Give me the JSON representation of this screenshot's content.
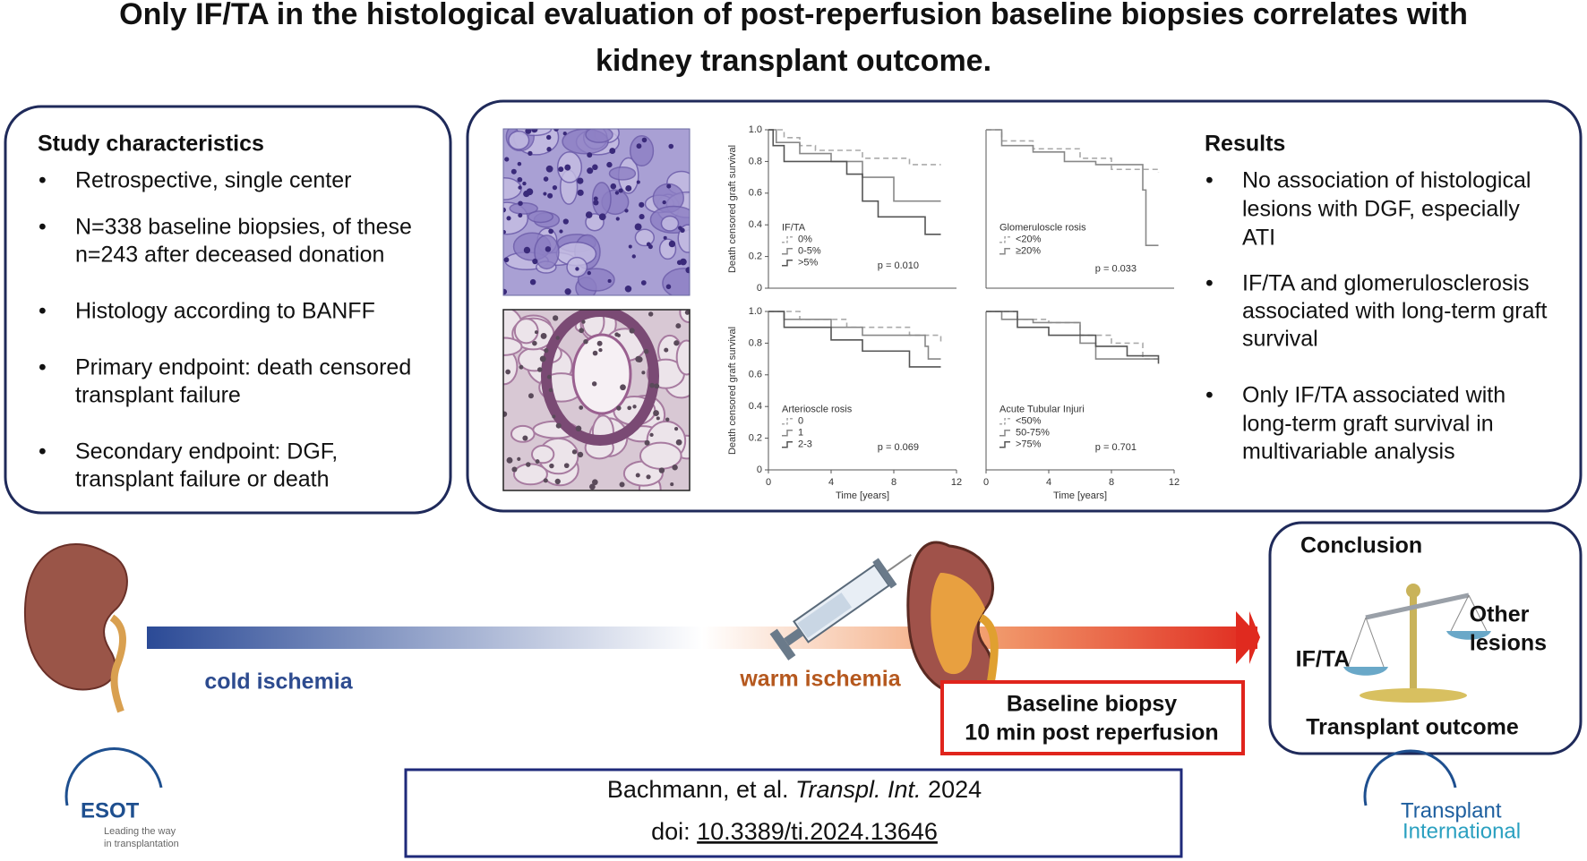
{
  "header": {
    "title": [
      "Only IF/TA in the histological evaluation of post-reperfusion baseline biopsies correlates with",
      "kidney transplant outcome."
    ]
  },
  "study": {
    "heading": "Study characteristics",
    "bullets": [
      [
        "Retrospective, single center"
      ],
      [
        "N=338 baseline biopsies, of these",
        "n=243 after deceased donation"
      ],
      [
        "Histology according to BANFF"
      ],
      [
        "Primary endpoint: death censored",
        "transplant failure"
      ],
      [
        "Secondary endpoint: DGF,",
        "transplant failure or death"
      ]
    ]
  },
  "results": {
    "heading": "Results",
    "bullets": [
      [
        "No association of histological",
        "lesions with DGF, especially",
        "ATI"
      ],
      [
        "IF/TA and glomerulosclerosis",
        "associated with long-term graft",
        "survival"
      ],
      [
        "Only IF/TA associated with",
        "long-term graft survival in",
        "multivariable analysis"
      ]
    ]
  },
  "timeline": {
    "cold": "cold ischemia",
    "warm": "warm ischemia",
    "biopsy": [
      "Baseline biopsy",
      "10 min post reperfusion"
    ]
  },
  "conclusion": {
    "heading": "Conclusion",
    "left": "IF/TA",
    "right": [
      "Other",
      "lesions"
    ],
    "outcome": "Transplant outcome"
  },
  "citation": {
    "authors": "Bachmann, et al. ",
    "journal": "Transpl. Int.",
    "year": " 2024",
    "doi_prefix": "doi: ",
    "doi": "10.3389/ti.2024.13646"
  },
  "logos": {
    "esot": "ESOT",
    "esot_tagline": [
      "Leading the way",
      "in transplantation"
    ],
    "ti": [
      "Transplant",
      "International"
    ]
  },
  "chart_data": [
    {
      "type": "line",
      "step": true,
      "legend_title": "IF/TA",
      "annotation": "p = 0.010",
      "ylabel": "Death censored graft survival",
      "xlim": [
        0,
        12
      ],
      "ylim": [
        0,
        1
      ],
      "yticks": [
        0,
        0.2,
        0.4,
        0.6,
        0.8,
        {
          "value": 1,
          "label": "1.0"
        }
      ],
      "series": [
        {
          "name": "0%",
          "color": "#aaaaaa",
          "dashed": true,
          "x": [
            0,
            1,
            2,
            3,
            6,
            9,
            11
          ],
          "values": [
            1,
            0.95,
            0.9,
            0.87,
            0.82,
            0.78,
            0.78
          ]
        },
        {
          "name": "0-5%",
          "color": "#888888",
          "dashed": false,
          "x": [
            0,
            0.5,
            2,
            4,
            6,
            8,
            11
          ],
          "values": [
            1,
            0.92,
            0.85,
            0.8,
            0.7,
            0.55,
            0.55
          ]
        },
        {
          "name": ">5%",
          "color": "#555555",
          "dashed": false,
          "x": [
            0,
            0.3,
            1,
            5,
            6,
            7,
            10,
            11
          ],
          "values": [
            1,
            0.9,
            0.8,
            0.72,
            0.55,
            0.45,
            0.34,
            0.34
          ]
        }
      ]
    },
    {
      "type": "line",
      "step": true,
      "legend_title": "Glomeruloscle rosis",
      "annotation": "p = 0.033",
      "xlim": [
        0,
        12
      ],
      "ylim": [
        0,
        1
      ],
      "series": [
        {
          "name": "<20%",
          "color": "#aaaaaa",
          "dashed": true,
          "x": [
            0,
            1,
            3,
            6,
            8,
            11
          ],
          "values": [
            1,
            0.93,
            0.88,
            0.82,
            0.75,
            0.73
          ]
        },
        {
          "name": "≥20%",
          "color": "#888888",
          "dashed": false,
          "x": [
            0,
            1,
            3,
            5,
            7,
            10,
            10.2,
            11
          ],
          "values": [
            1,
            0.9,
            0.86,
            0.8,
            0.78,
            0.62,
            0.27,
            0.27
          ]
        }
      ]
    },
    {
      "type": "line",
      "step": true,
      "legend_title": "Arterioscle rosis",
      "annotation": "p = 0.069",
      "ylabel": "Death censored graft survival",
      "xlabel": "Time [years]",
      "xlim": [
        0,
        12
      ],
      "ylim": [
        0,
        1
      ],
      "xticks": [
        0,
        4,
        8,
        12
      ],
      "yticks": [
        0,
        0.2,
        0.4,
        0.6,
        0.8,
        {
          "value": 1,
          "label": "1.0"
        }
      ],
      "series": [
        {
          "name": "0",
          "color": "#aaaaaa",
          "dashed": true,
          "x": [
            0,
            2,
            5,
            9,
            11
          ],
          "values": [
            1,
            0.95,
            0.9,
            0.85,
            0.8
          ]
        },
        {
          "name": "1",
          "color": "#888888",
          "dashed": false,
          "x": [
            0,
            1,
            4,
            6,
            10,
            10.2,
            11
          ],
          "values": [
            1,
            0.95,
            0.9,
            0.85,
            0.78,
            0.7,
            0.7
          ]
        },
        {
          "name": "2-3",
          "color": "#555555",
          "dashed": false,
          "x": [
            0,
            1,
            4,
            6,
            9,
            11
          ],
          "values": [
            1,
            0.9,
            0.82,
            0.75,
            0.65,
            0.65
          ]
        }
      ]
    },
    {
      "type": "line",
      "step": true,
      "legend_title": "Acute Tubular Injuri",
      "annotation": "p = 0.701",
      "xlabel": "Time [years]",
      "xlim": [
        0,
        12
      ],
      "ylim": [
        0,
        1
      ],
      "xticks": [
        0,
        4,
        8,
        12
      ],
      "series": [
        {
          "name": "<50%",
          "color": "#aaaaaa",
          "dashed": true,
          "x": [
            0,
            2,
            4,
            6,
            8,
            10,
            11
          ],
          "values": [
            1,
            0.95,
            0.93,
            0.85,
            0.8,
            0.7,
            0.68
          ]
        },
        {
          "name": "50-75%",
          "color": "#888888",
          "dashed": false,
          "x": [
            0,
            1,
            3,
            6,
            7,
            9,
            11
          ],
          "values": [
            1,
            0.95,
            0.93,
            0.8,
            0.7,
            0.7,
            0.7
          ]
        },
        {
          "name": ">75%",
          "color": "#555555",
          "dashed": false,
          "x": [
            0,
            2,
            4,
            7,
            9,
            11
          ],
          "values": [
            1,
            0.9,
            0.85,
            0.78,
            0.72,
            0.67
          ]
        }
      ]
    }
  ]
}
